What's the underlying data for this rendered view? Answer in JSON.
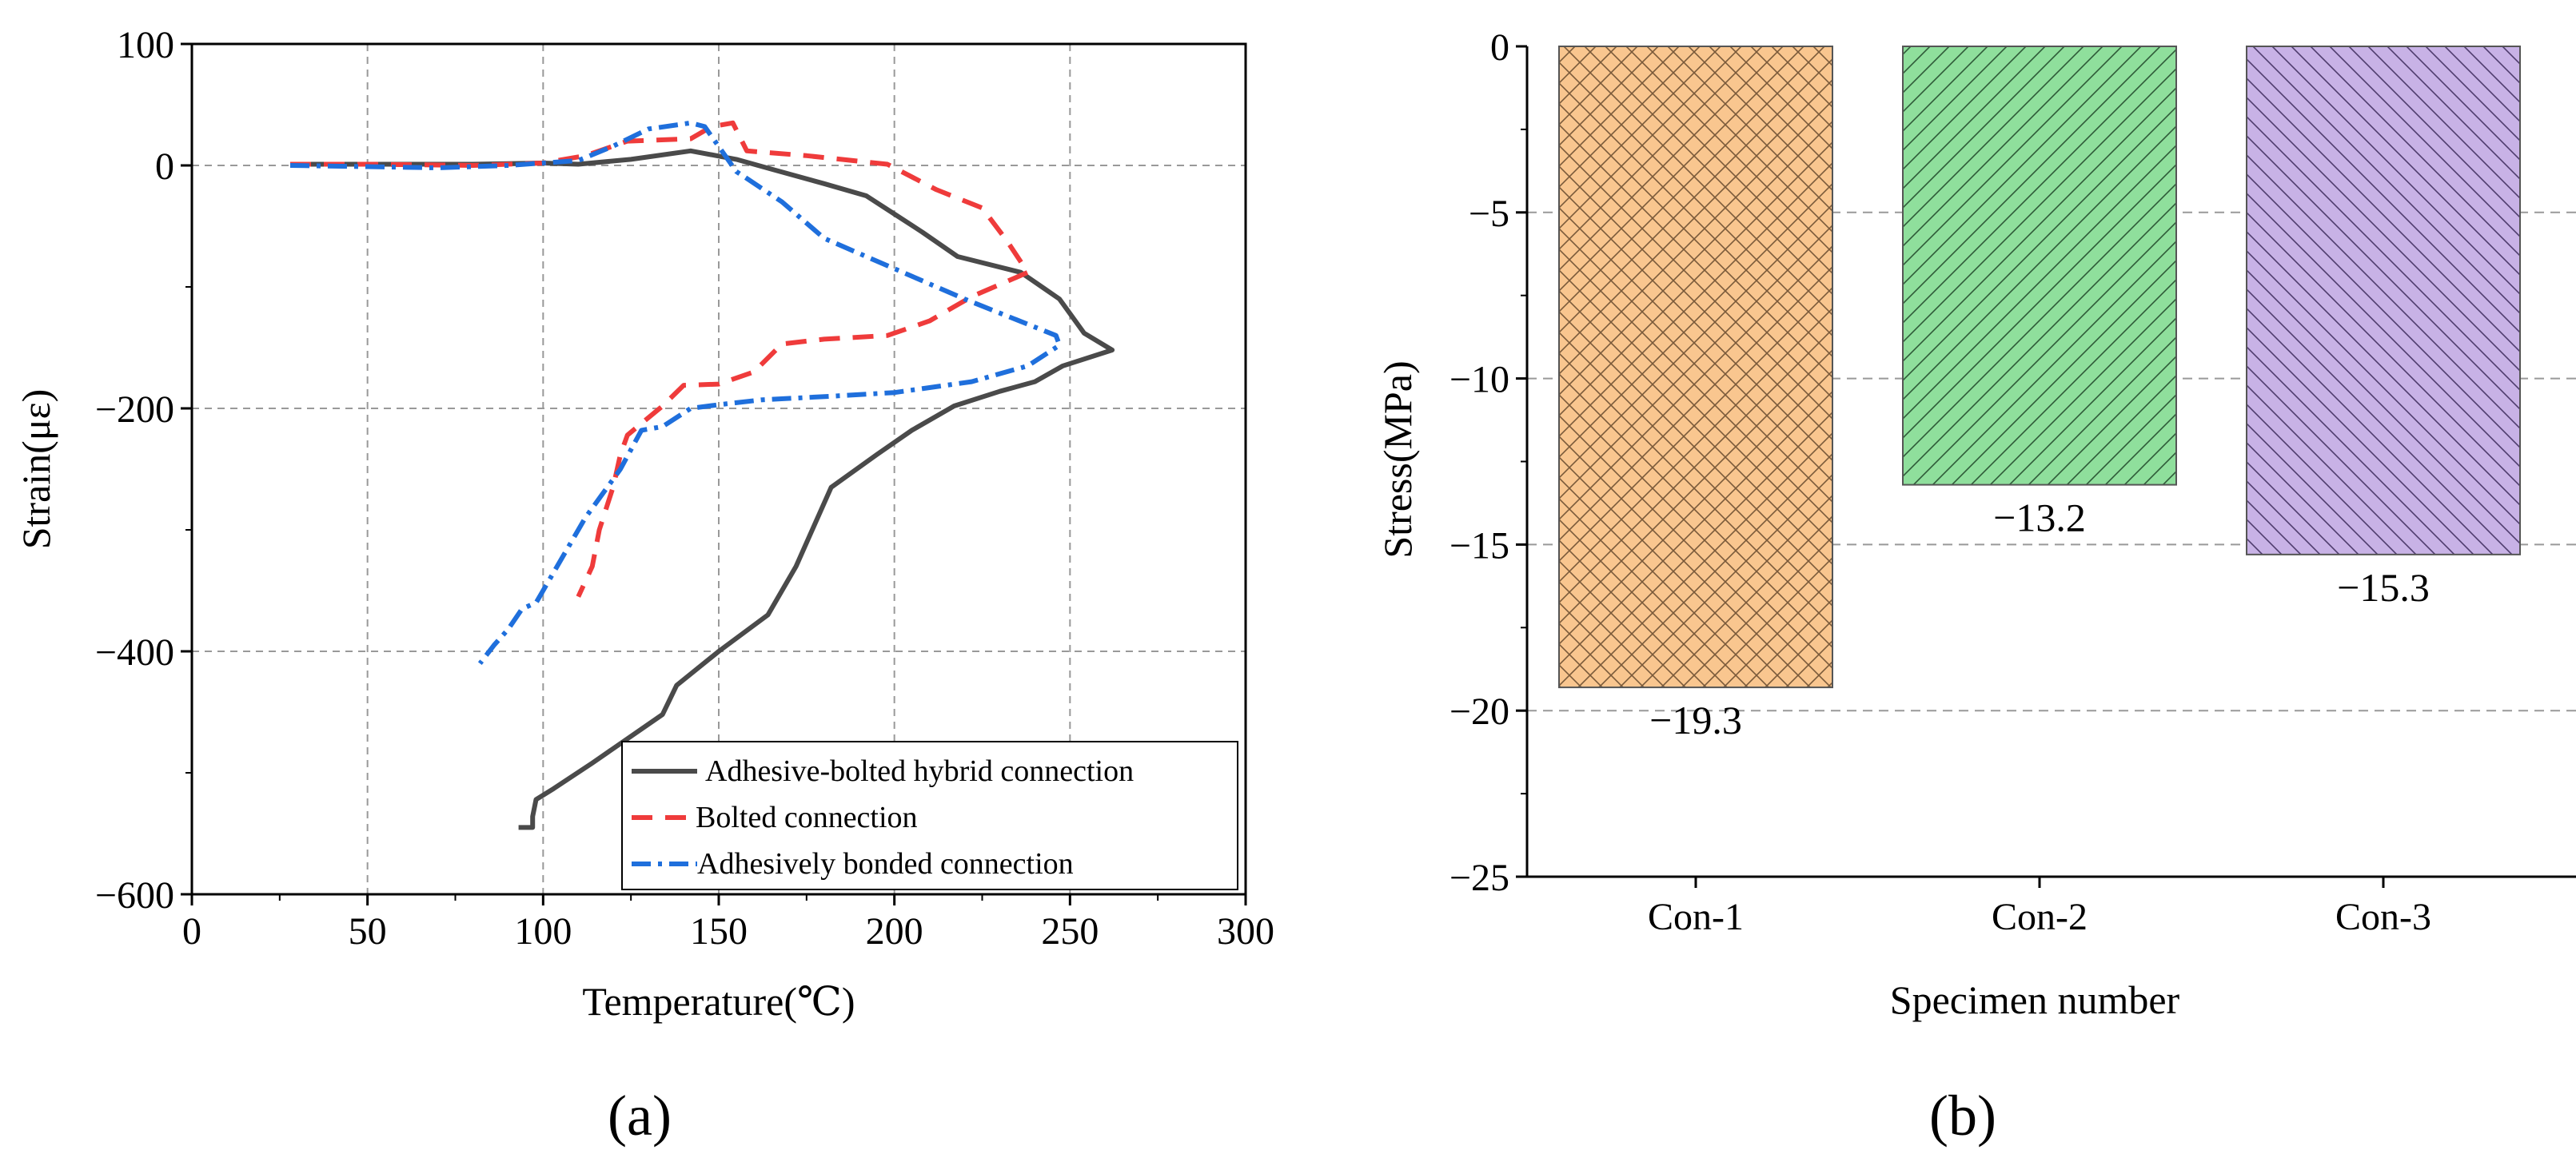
{
  "chart_data": [
    {
      "panel_label": "(a)",
      "type": "line",
      "title": "",
      "xlabel": "Temperature(℃)",
      "ylabel": "Strain(με)",
      "xlim": [
        0,
        300
      ],
      "ylim": [
        -600,
        100
      ],
      "xticks": [
        0,
        50,
        100,
        150,
        200,
        250,
        300
      ],
      "yticks": [
        100,
        0,
        -200,
        -400,
        -600
      ],
      "ytick_labels": [
        "100",
        "0",
        "−200",
        "−400",
        "−600"
      ],
      "grid": true,
      "legend_position": "bottom-right",
      "series": [
        {
          "name": "Adhesive-bolted hybrid connection",
          "color": "#4a4a4a",
          "style": "solid",
          "points": [
            [
              28,
              1
            ],
            [
              50,
              1
            ],
            [
              80,
              1
            ],
            [
              100,
              2
            ],
            [
              110,
              1
            ],
            [
              125,
              5
            ],
            [
              142,
              12
            ],
            [
              155,
              5
            ],
            [
              165,
              -3
            ],
            [
              180,
              -15
            ],
            [
              192,
              -25
            ],
            [
              200,
              -40
            ],
            [
              208,
              -55
            ],
            [
              218,
              -75
            ],
            [
              236,
              -88
            ],
            [
              242,
              -100
            ],
            [
              247,
              -110
            ],
            [
              254,
              -138
            ],
            [
              262,
              -152
            ],
            [
              248,
              -165
            ],
            [
              240,
              -178
            ],
            [
              230,
              -186
            ],
            [
              217,
              -198
            ],
            [
              205,
              -218
            ],
            [
              195,
              -238
            ],
            [
              182,
              -265
            ],
            [
              172,
              -330
            ],
            [
              164,
              -370
            ],
            [
              150,
              -400
            ],
            [
              138,
              -428
            ],
            [
              134,
              -452
            ],
            [
              114,
              -492
            ],
            [
              103,
              -513
            ],
            [
              98,
              -522
            ],
            [
              97,
              -536
            ],
            [
              97,
              -545
            ],
            [
              93,
              -545
            ]
          ]
        },
        {
          "name": "Bolted connection",
          "color": "#ef3b3b",
          "style": "dashed",
          "points": [
            [
              28,
              1
            ],
            [
              50,
              1
            ],
            [
              80,
              0
            ],
            [
              100,
              2
            ],
            [
              112,
              8
            ],
            [
              124,
              20
            ],
            [
              142,
              22
            ],
            [
              148,
              32
            ],
            [
              154,
              35
            ],
            [
              158,
              12
            ],
            [
              175,
              8
            ],
            [
              198,
              1
            ],
            [
              212,
              -20
            ],
            [
              225,
              -35
            ],
            [
              232,
              -62
            ],
            [
              238,
              -88
            ],
            [
              222,
              -108
            ],
            [
              210,
              -128
            ],
            [
              198,
              -140
            ],
            [
              180,
              -143
            ],
            [
              168,
              -147
            ],
            [
              160,
              -170
            ],
            [
              150,
              -180
            ],
            [
              140,
              -181
            ],
            [
              134,
              -198
            ],
            [
              124,
              -222
            ],
            [
              122,
              -238
            ],
            [
              120,
              -264
            ],
            [
              116,
              -300
            ],
            [
              114,
              -330
            ],
            [
              110,
              -355
            ]
          ]
        },
        {
          "name": "Adhesively bonded connection",
          "color": "#1f6fdc",
          "style": "dashdot",
          "points": [
            [
              28,
              0
            ],
            [
              50,
              -1
            ],
            [
              70,
              -2
            ],
            [
              90,
              0
            ],
            [
              110,
              4
            ],
            [
              120,
              16
            ],
            [
              130,
              30
            ],
            [
              142,
              35
            ],
            [
              146,
              32
            ],
            [
              155,
              -5
            ],
            [
              168,
              -30
            ],
            [
              180,
              -60
            ],
            [
              200,
              -85
            ],
            [
              220,
              -110
            ],
            [
              246,
              -140
            ],
            [
              247,
              -148
            ],
            [
              238,
              -165
            ],
            [
              222,
              -178
            ],
            [
              200,
              -187
            ],
            [
              182,
              -190
            ],
            [
              162,
              -193
            ],
            [
              150,
              -197
            ],
            [
              142,
              -200
            ],
            [
              134,
              -215
            ],
            [
              128,
              -218
            ],
            [
              122,
              -250
            ],
            [
              112,
              -290
            ],
            [
              106,
              -320
            ],
            [
              100,
              -350
            ],
            [
              98,
              -360
            ],
            [
              94,
              -365
            ],
            [
              90,
              -382
            ],
            [
              86,
              -395
            ],
            [
              82,
              -410
            ]
          ]
        }
      ]
    },
    {
      "panel_label": "(b)",
      "type": "bar",
      "title": "",
      "xlabel": "Specimen number",
      "ylabel": "Stress(MPa)",
      "ylim": [
        -25,
        0
      ],
      "yticks": [
        0,
        -5,
        -10,
        -15,
        -20,
        -25
      ],
      "ytick_labels": [
        "0",
        "−5",
        "−10",
        "−15",
        "−20",
        "−25"
      ],
      "categories": [
        "Con-1",
        "Con-2",
        "Con-3"
      ],
      "values": [
        -19.3,
        -13.2,
        -15.3
      ],
      "value_labels": [
        "−19.3",
        "−13.2",
        "−15.3"
      ],
      "bar_colors": [
        "#f9c68f",
        "#8fdf9c",
        "#c8b2e6"
      ],
      "hatches": [
        "crosshatch",
        "diagonal",
        "back-diagonal"
      ],
      "grid": "horizontal-dashed"
    }
  ]
}
